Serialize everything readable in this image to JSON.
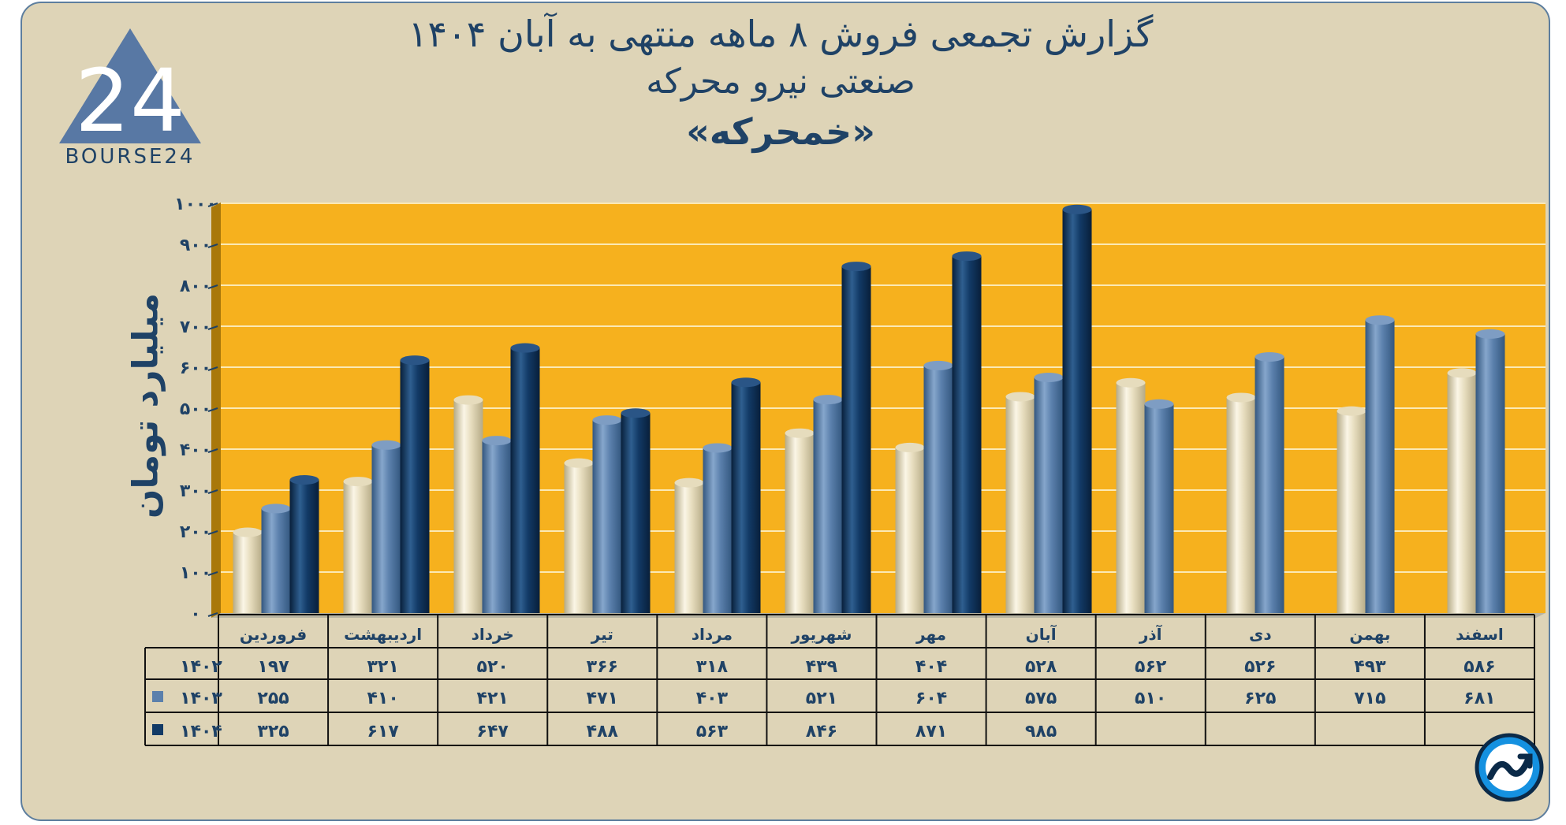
{
  "header": {
    "title_line1": "گزارش تجمعی فروش ۸ ماهه منتهی به آبان ۱۴۰۴",
    "title_line2": "صنعتی نیرو محرکه",
    "title_line3": "«خمحرکه»"
  },
  "logo": {
    "text": "BOURSE24",
    "mark_text": "24"
  },
  "colors": {
    "c1402": "#e6dcbd",
    "c1403": "#5b80ac",
    "c1404": "#123a66",
    "plot_bg": "#f6b11e",
    "text": "#1f4266"
  },
  "chart_data": {
    "type": "bar",
    "title": "گزارش تجمعی فروش ۸ ماهه منتهی به آبان ۱۴۰۴",
    "ylabel": "میلیارد تومان",
    "ylim": [
      0,
      1000
    ],
    "yticks": [
      0,
      100,
      200,
      300,
      400,
      500,
      600,
      700,
      800,
      900,
      1000
    ],
    "ytick_labels": [
      "۰",
      "۱۰۰",
      "۲۰۰",
      "۳۰۰",
      "۴۰۰",
      "۵۰۰",
      "۶۰۰",
      "۷۰۰",
      "۸۰۰",
      "۹۰۰",
      "۱۰۰۰"
    ],
    "categories": [
      "فروردین",
      "اردیبهشت",
      "خرداد",
      "تیر",
      "مرداد",
      "شهریور",
      "مهر",
      "آبان",
      "آذر",
      "دی",
      "بهمن",
      "اسفند"
    ],
    "series": [
      {
        "name": "۱۴۰۲",
        "values": [
          197,
          321,
          520,
          366,
          318,
          439,
          404,
          528,
          562,
          526,
          493,
          586
        ],
        "labels": [
          "۱۹۷",
          "۳۲۱",
          "۵۲۰",
          "۳۶۶",
          "۳۱۸",
          "۴۳۹",
          "۴۰۴",
          "۵۲۸",
          "۵۶۲",
          "۵۲۶",
          "۴۹۳",
          "۵۸۶"
        ]
      },
      {
        "name": "۱۴۰۳",
        "values": [
          255,
          410,
          421,
          471,
          403,
          521,
          604,
          575,
          510,
          625,
          715,
          681
        ],
        "labels": [
          "۲۵۵",
          "۴۱۰",
          "۴۲۱",
          "۴۷۱",
          "۴۰۳",
          "۵۲۱",
          "۶۰۴",
          "۵۷۵",
          "۵۱۰",
          "۶۲۵",
          "۷۱۵",
          "۶۸۱"
        ]
      },
      {
        "name": "۱۴۰۴",
        "values": [
          325,
          617,
          647,
          488,
          563,
          846,
          871,
          985,
          null,
          null,
          null,
          null
        ],
        "labels": [
          "۳۲۵",
          "۶۱۷",
          "۶۴۷",
          "۴۸۸",
          "۵۶۳",
          "۸۴۶",
          "۸۷۱",
          "۹۸۵",
          "",
          "",
          "",
          ""
        ]
      }
    ]
  }
}
